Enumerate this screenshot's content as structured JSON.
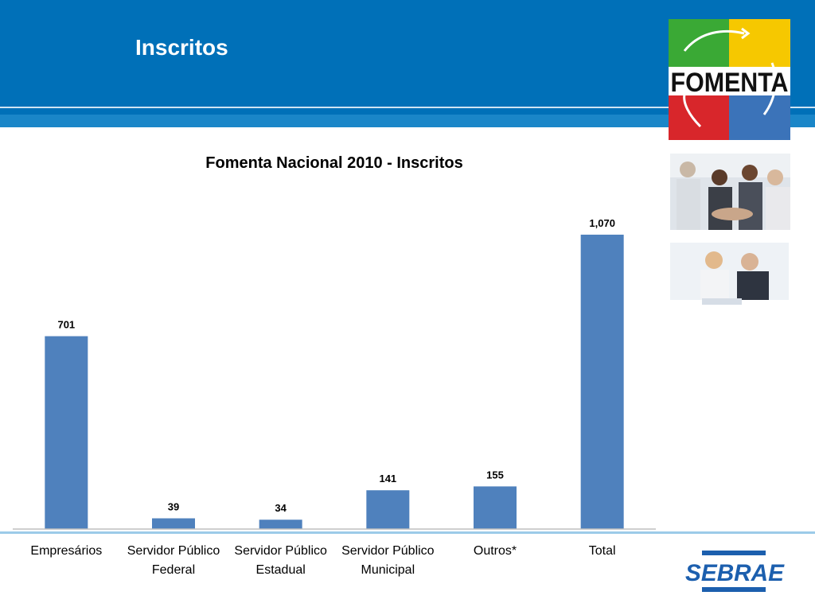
{
  "slide": {
    "title": "Inscritos"
  },
  "logos": {
    "fomenta": "FOMENTA",
    "sebrae": "SEBRAE"
  },
  "colors": {
    "header": "#0070b8",
    "bar": "#4f81bd"
  },
  "chart_data": {
    "type": "bar",
    "title": "Fomenta Nacional 2010 - Inscritos",
    "categories": [
      [
        "Empresários"
      ],
      [
        "Servidor Público",
        "Federal"
      ],
      [
        "Servidor Público",
        "Estadual"
      ],
      [
        "Servidor Público",
        "Municipal"
      ],
      [
        "Outros*"
      ],
      [
        "Total"
      ]
    ],
    "values": [
      701,
      39,
      34,
      141,
      155,
      1070
    ],
    "data_labels": [
      "701",
      "39",
      "34",
      "141",
      "155",
      "1,070"
    ],
    "ylim": [
      0,
      1200
    ],
    "grid": false,
    "legend": "none"
  }
}
